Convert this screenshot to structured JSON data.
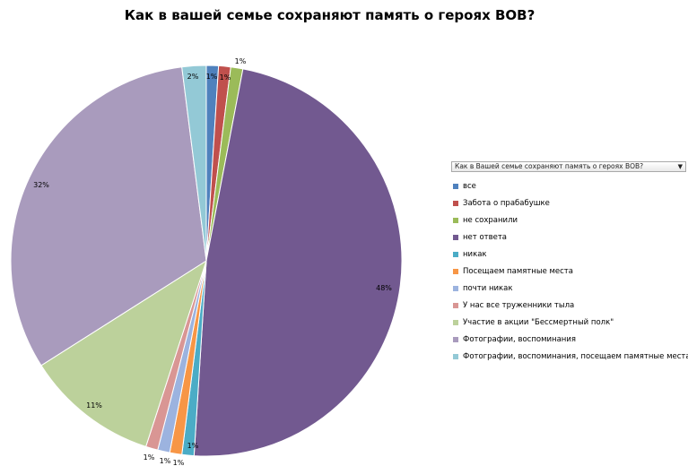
{
  "chart_data": {
    "type": "pie",
    "title": "Как в вашей семье сохраняют память о героях ВОВ?",
    "legend_header": "Как в Вашей семье сохраняют память о героях ВОВ?",
    "legend_position": "right",
    "slices": [
      {
        "name": "все",
        "value": 1,
        "label": "1%",
        "color": "#4f81bd"
      },
      {
        "name": "Забота о прабабушке",
        "value": 1,
        "label": "1%",
        "color": "#c0504d"
      },
      {
        "name": "не сохранили",
        "value": 1,
        "label": "1%",
        "color": "#9bbb59"
      },
      {
        "name": "нет ответа",
        "value": 48,
        "label": "48%",
        "color": "#725990"
      },
      {
        "name": "никак",
        "value": 1,
        "label": "1%",
        "color": "#4bacc6"
      },
      {
        "name": "Посещаем памятные места",
        "value": 1,
        "label": "1%",
        "color": "#f79646"
      },
      {
        "name": "почти никак",
        "value": 1,
        "label": "1%",
        "color": "#9cb3df"
      },
      {
        "name": "У нас все труженники тыла",
        "value": 1,
        "label": "1%",
        "color": "#d99694"
      },
      {
        "name": "Участие в акции \"Бессмертный полк\"",
        "value": 11,
        "label": "11%",
        "color": "#bcd19b"
      },
      {
        "name": "Фотографии, воспоминания",
        "value": 32,
        "label": "32%",
        "color": "#a99bbd"
      },
      {
        "name": "Фотографии, воспоминания, посещаем памятные места",
        "value": 2,
        "label": "2%",
        "color": "#93c9d6"
      }
    ]
  }
}
